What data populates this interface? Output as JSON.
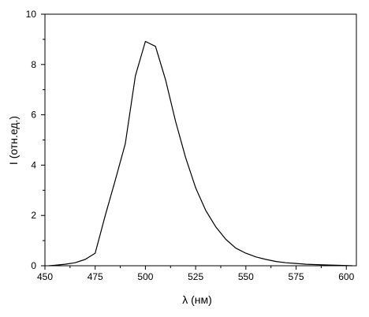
{
  "chart_data": {
    "type": "line",
    "title": "",
    "xlabel": "λ (нм)",
    "ylabel": "I (отн.ед.)",
    "xlim": [
      450,
      605
    ],
    "ylim": [
      0,
      10
    ],
    "xticks": [
      450,
      475,
      500,
      525,
      550,
      575,
      600
    ],
    "yticks": [
      0,
      2,
      4,
      6,
      8,
      10
    ],
    "grid": false,
    "legend": "none",
    "line_color": "#000000",
    "series": [
      {
        "x": [
          452,
          455,
          460,
          465,
          470,
          475,
          480,
          485,
          490,
          495,
          500,
          505,
          510,
          515,
          520,
          525,
          530,
          535,
          540,
          545,
          550,
          555,
          560,
          565,
          570,
          575,
          580,
          590,
          600,
          603
        ],
        "y": [
          0,
          0.02,
          0.06,
          0.12,
          0.25,
          0.5,
          2.0,
          3.4,
          4.85,
          7.55,
          8.92,
          8.72,
          7.4,
          5.75,
          4.3,
          3.1,
          2.2,
          1.55,
          1.05,
          0.7,
          0.5,
          0.35,
          0.25,
          0.17,
          0.12,
          0.09,
          0.06,
          0.03,
          0.01,
          0
        ]
      }
    ]
  }
}
